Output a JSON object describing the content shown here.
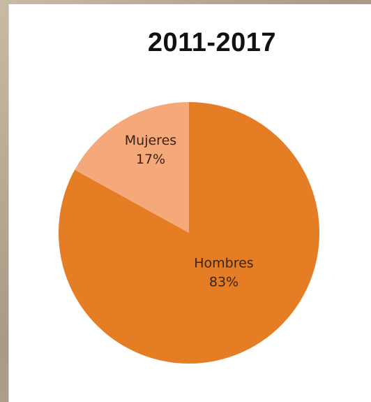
{
  "chart_data": {
    "type": "pie",
    "title": "2011-2017",
    "slices": [
      {
        "label": "Hombres",
        "value": 83,
        "value_label": "83%",
        "color": "#e57d25",
        "label_color": "#3a2410"
      },
      {
        "label": "Mujeres",
        "value": 17,
        "value_label": "17%",
        "color": "#f5a87a",
        "label_color": "#3a2410"
      }
    ],
    "legend": "none"
  }
}
